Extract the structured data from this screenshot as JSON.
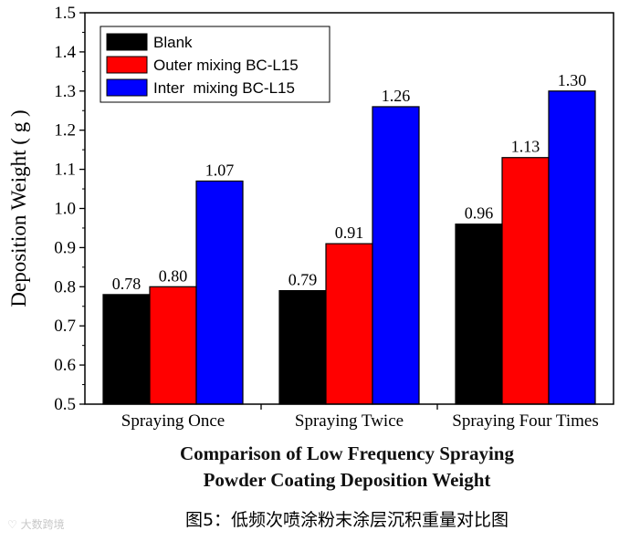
{
  "chart_data": {
    "type": "bar",
    "categories": [
      "Spraying Once",
      "Spraying Twice",
      "Spraying Four Times"
    ],
    "series": [
      {
        "name": "Blank",
        "color": "#000000",
        "values": [
          0.78,
          0.79,
          0.96
        ],
        "labels": [
          "0.78",
          "0.79",
          "0.96"
        ]
      },
      {
        "name": "Outer mixing BC-L15",
        "color": "#ff0000",
        "values": [
          0.8,
          0.91,
          1.13
        ],
        "labels": [
          "0.80",
          "0.91",
          "1.13"
        ]
      },
      {
        "name": "Inter  mixing BC-L15",
        "color": "#0000ff",
        "values": [
          1.07,
          1.26,
          1.3
        ],
        "labels": [
          "1.07",
          "1.26",
          "1.30"
        ]
      }
    ],
    "ylabel": "Deposition Weight ( g )",
    "ylim": [
      0.5,
      1.5
    ],
    "yticks": [
      "0.5",
      "0.6",
      "0.7",
      "0.8",
      "0.9",
      "1.0",
      "1.1",
      "1.2",
      "1.3",
      "1.4",
      "1.5"
    ],
    "legend_position": "top-left",
    "title_lines": [
      "Comparison of Low Frequency Spraying",
      "Powder Coating Deposition Weight"
    ]
  },
  "caption": "图5：低频次喷涂粉末涂层沉积重量对比图",
  "watermark": "大数跨境"
}
